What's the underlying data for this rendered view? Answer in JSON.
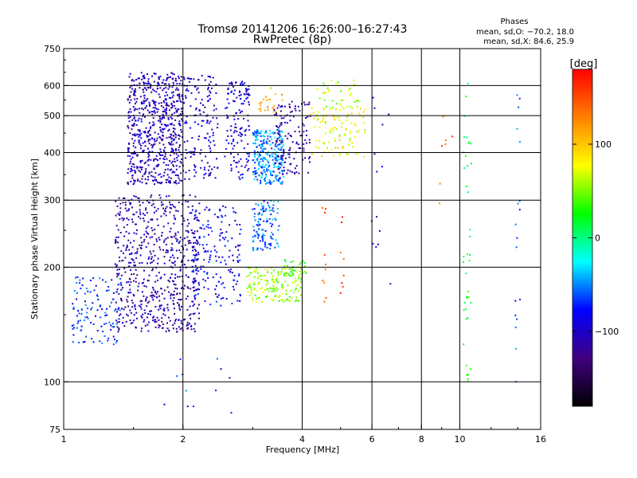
{
  "chart_data": {
    "type": "scatter",
    "title": "Tromsø 20141206 16:26:00–16:27:43",
    "subtitle": "RwPretec (8p)",
    "xlabel": "Frequency [MHz]",
    "ylabel": "Stationary phase Virtual Height [km]",
    "x_scale": "log",
    "y_scale": "log",
    "xlim": [
      1,
      16
    ],
    "ylim": [
      75,
      750
    ],
    "x_ticks": [
      1,
      2,
      4,
      6,
      8,
      10,
      16
    ],
    "x_tick_labels": [
      "1",
      "2",
      "4",
      "6",
      "8",
      "10",
      "16"
    ],
    "y_ticks": [
      75,
      100,
      200,
      300,
      400,
      500,
      600,
      750
    ],
    "y_tick_labels": [
      "75",
      "100",
      "200",
      "300",
      "400",
      "500",
      "600",
      "750"
    ],
    "grid_x": [
      2,
      4,
      6,
      8,
      10
    ],
    "grid_y": [
      100,
      200,
      300,
      400,
      500,
      600
    ],
    "phases_info": {
      "heading": "Phases",
      "line_o": "mean, sd,O: −70.2, 18.0",
      "line_x": "mean, sd,X: 84.6, 25.9"
    },
    "colorbar": {
      "label": "[deg]",
      "range": [
        -180,
        180
      ],
      "ticks": [
        100,
        0,
        -100
      ],
      "tick_labels": [
        "100",
        "0",
        "−100"
      ],
      "colors": [
        "#ff0000",
        "#ff8000",
        "#ffff00",
        "#00ff00",
        "#00ffff",
        "#0000ff",
        "#400080",
        "#000000"
      ]
    },
    "clusters": [
      {
        "f": [
          1.45,
          2.0
        ],
        "h": [
          330,
          650
        ],
        "phase": -105,
        "n": 650
      },
      {
        "f": [
          2.0,
          2.45
        ],
        "h": [
          340,
          640
        ],
        "phase": -100,
        "n": 150
      },
      {
        "f": [
          2.55,
          2.95
        ],
        "h": [
          340,
          620
        ],
        "phase": -95,
        "n": 140
      },
      {
        "f": [
          1.35,
          2.2
        ],
        "h": [
          135,
          310
        ],
        "phase": -110,
        "n": 650
      },
      {
        "f": [
          1.05,
          1.4
        ],
        "h": [
          125,
          190
        ],
        "phase": -70,
        "n": 120
      },
      {
        "f": [
          2.1,
          2.8
        ],
        "h": [
          158,
          290
        ],
        "phase": -85,
        "n": 180
      },
      {
        "f": [
          3.0,
          3.6
        ],
        "h": [
          330,
          460
        ],
        "phase": -50,
        "n": 280
      },
      {
        "f": [
          3.1,
          3.6
        ],
        "h": [
          510,
          600
        ],
        "phase": 115,
        "n": 25
      },
      {
        "f": [
          3.0,
          3.5
        ],
        "h": [
          220,
          300
        ],
        "phase": -55,
        "n": 120
      },
      {
        "f": [
          3.4,
          4.2
        ],
        "h": [
          350,
          550
        ],
        "phase": -115,
        "n": 130
      },
      {
        "f": [
          4.2,
          5.8
        ],
        "h": [
          390,
          530
        ],
        "phase": 75,
        "n": 110
      },
      {
        "f": [
          4.3,
          5.6
        ],
        "h": [
          520,
          620
        ],
        "phase": 60,
        "n": 35
      },
      {
        "f": [
          2.9,
          4.0
        ],
        "h": [
          162,
          200
        ],
        "phase": 55,
        "n": 170
      },
      {
        "f": [
          3.6,
          4.1
        ],
        "h": [
          190,
          210
        ],
        "phase": 30,
        "n": 30
      },
      {
        "f": [
          4.5,
          4.6
        ],
        "h": [
          160,
          290
        ],
        "phase": 150,
        "n": 10
      },
      {
        "f": [
          5.0,
          5.1
        ],
        "h": [
          160,
          280
        ],
        "phase": 155,
        "n": 8
      },
      {
        "f": [
          10.2,
          10.7
        ],
        "h": [
          100,
          620
        ],
        "phase": 20,
        "n": 40
      },
      {
        "f": [
          13.8,
          14.2
        ],
        "h": [
          95,
          580
        ],
        "phase": -60,
        "n": 18
      },
      {
        "f": [
          8.8,
          9.6
        ],
        "h": [
          270,
          500
        ],
        "phase": 140,
        "n": 8
      },
      {
        "f": [
          1.7,
          2.8
        ],
        "h": [
          80,
          120
        ],
        "phase": -70,
        "n": 12
      },
      {
        "f": [
          5.9,
          6.8
        ],
        "h": [
          130,
          630
        ],
        "phase": -100,
        "n": 14
      }
    ]
  }
}
